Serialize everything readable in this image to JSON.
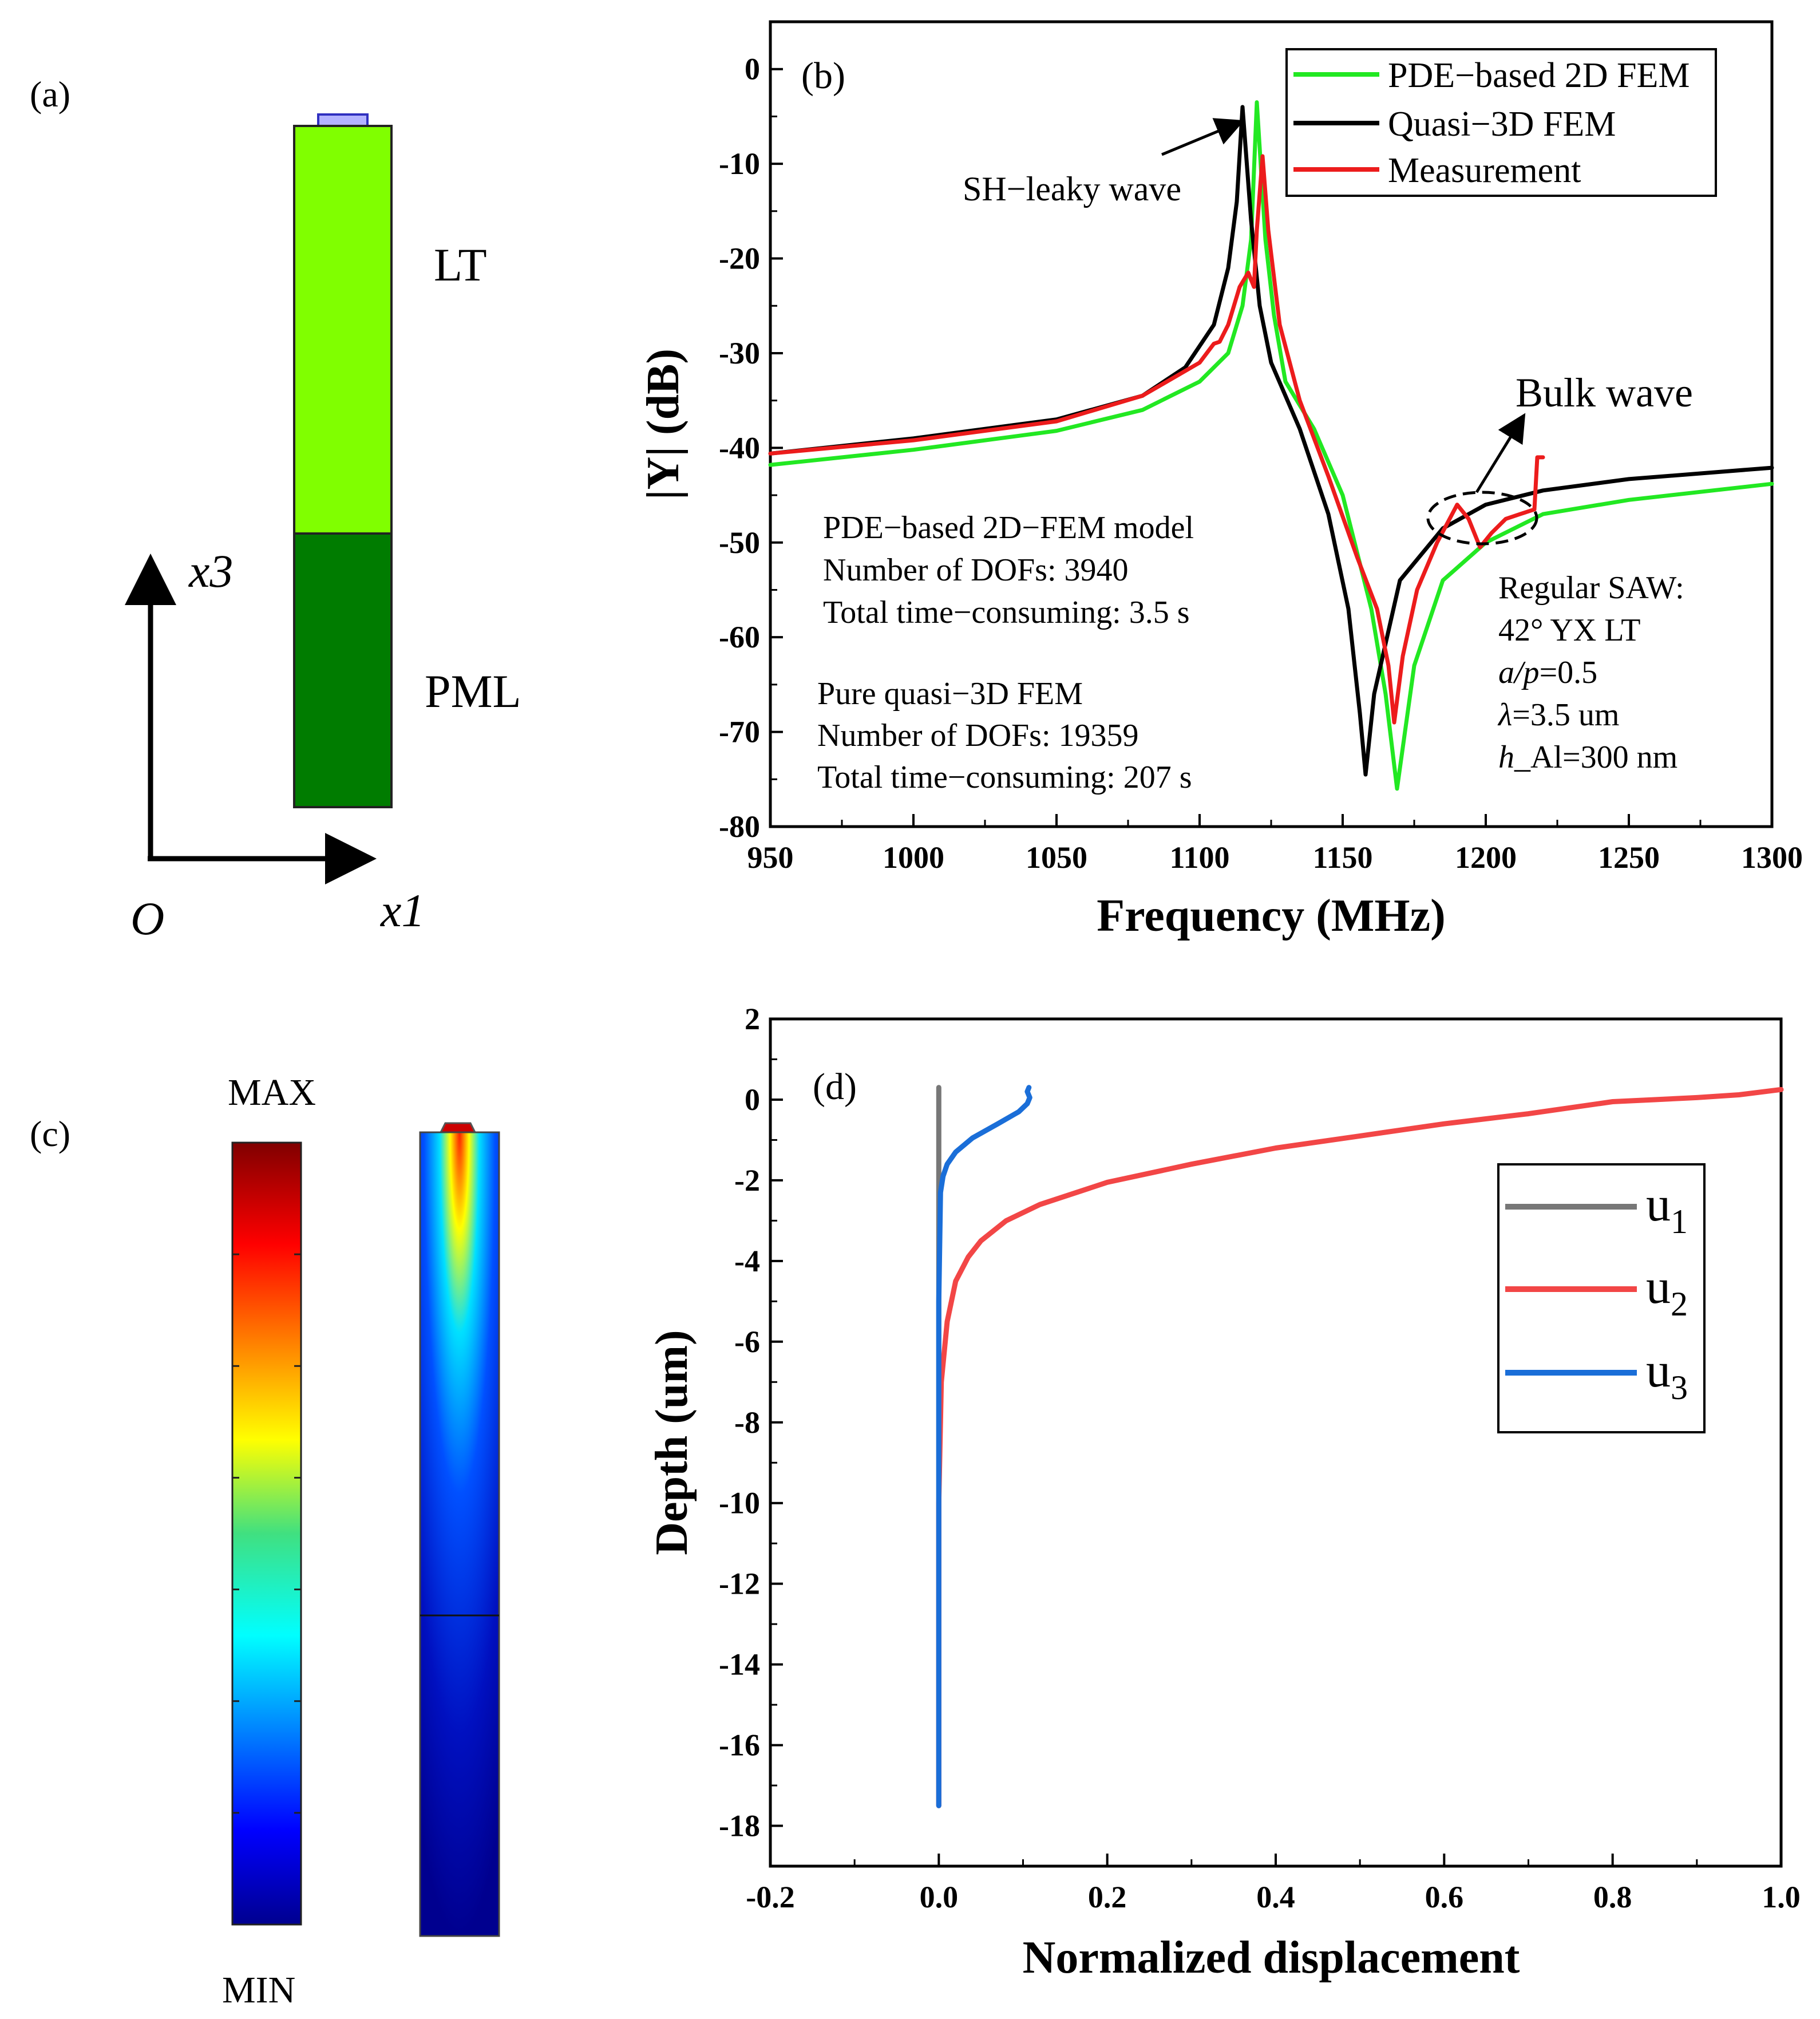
{
  "panel_a": {
    "label": "(a)",
    "lt_label": "LT",
    "pml_label": "PML",
    "x3_label": "x3",
    "x1_label": "x1",
    "origin_label": "O",
    "colors": {
      "lt": "#80ff00",
      "pml": "#007c00",
      "electrode": "#b3b3ff"
    }
  },
  "panel_c": {
    "label": "(c)",
    "max_label": "MAX",
    "min_label": "MIN"
  },
  "chart_data": [
    {
      "type": "line",
      "panel_label": "(b)",
      "xlabel": "Frequency (MHz)",
      "ylabel": "|Y| (dB)",
      "xlim": [
        950,
        1300
      ],
      "ylim": [
        -80,
        5
      ],
      "xticks": [
        950,
        1000,
        1050,
        1100,
        1150,
        1200,
        1250,
        1300
      ],
      "yticks": [
        0,
        -10,
        -20,
        -30,
        -40,
        -50,
        -60,
        -70,
        -80
      ],
      "legend_position": "top-right",
      "series": [
        {
          "name": "PDE−based 2D FEM",
          "color": "#22e822",
          "x": [
            950,
            1000,
            1050,
            1080,
            1100,
            1110,
            1115,
            1118,
            1120,
            1123,
            1126,
            1130,
            1140,
            1150,
            1160,
            1165,
            1169,
            1175,
            1185,
            1200,
            1220,
            1250,
            1300
          ],
          "y": [
            -41.8,
            -40.2,
            -38.2,
            -36,
            -33,
            -30,
            -25,
            -18,
            -3.5,
            -18,
            -26,
            -33,
            -38,
            -45,
            -57,
            -66,
            -76,
            -63,
            -54,
            -50,
            -47,
            -45.5,
            -43.8
          ]
        },
        {
          "name": "Quasi−3D FEM",
          "color": "#000000",
          "x": [
            950,
            1000,
            1050,
            1080,
            1095,
            1105,
            1110,
            1113,
            1115,
            1118,
            1121,
            1125,
            1135,
            1145,
            1152,
            1156,
            1158,
            1161,
            1170,
            1185,
            1200,
            1220,
            1250,
            1300
          ],
          "y": [
            -40.6,
            -39,
            -37,
            -34.5,
            -31.5,
            -27,
            -21,
            -14,
            -4,
            -16,
            -25,
            -31,
            -38,
            -47,
            -57,
            -68,
            -74.5,
            -66,
            -54,
            -48.5,
            -46,
            -44.5,
            -43.3,
            -42.1
          ],
          "annotation": "SH−leaky wave"
        },
        {
          "name": "Measurement",
          "color": "#ec1c1c",
          "x": [
            950,
            1000,
            1050,
            1080,
            1100,
            1105,
            1107,
            1110,
            1114,
            1117,
            1119,
            1120,
            1122,
            1124,
            1128,
            1135,
            1145,
            1155,
            1162,
            1166,
            1168,
            1171,
            1176,
            1183,
            1190,
            1194,
            1198,
            1202,
            1207,
            1212,
            1217,
            1218,
            1219,
            1220
          ],
          "y": [
            -40.6,
            -39.2,
            -37.2,
            -34.5,
            -31,
            -29,
            -28.8,
            -27,
            -23,
            -21.5,
            -23,
            -17,
            -9.2,
            -17,
            -27,
            -35,
            -43,
            -51.5,
            -57,
            -63,
            -69,
            -62,
            -55,
            -50,
            -46,
            -47.5,
            -50.5,
            -49,
            -47.5,
            -47,
            -46.5,
            -41,
            -41,
            -41
          ]
        }
      ],
      "annotations": {
        "sh_leaky": "SH−leaky wave",
        "bulk": "Bulk wave",
        "model1": [
          "PDE−based 2D−FEM model",
          "Number of DOFs: 3940",
          "Total time−consuming: 3.5 s"
        ],
        "model2": [
          "Pure quasi−3D FEM",
          "Number of DOFs: 19359",
          "Total time−consuming: 207 s"
        ],
        "saw": {
          "title": "Regular SAW:",
          "cut": "42° YX LT",
          "ap_var": "a/p",
          "ap_val": "=0.5",
          "lambda_var": "λ",
          "lambda_val": "=3.5 um",
          "h_var": "h",
          "h_val": "_Al=300 nm"
        }
      }
    },
    {
      "type": "line",
      "panel_label": "(d)",
      "xlabel": "Normalized displacement",
      "ylabel": "Depth (um)",
      "xlim": [
        -0.2,
        1.0
      ],
      "ylim": [
        -19,
        2
      ],
      "xticks": [
        -0.2,
        0.0,
        0.2,
        0.4,
        0.6,
        0.8,
        1.0
      ],
      "yticks": [
        2,
        0,
        -2,
        -4,
        -6,
        -8,
        -10,
        -12,
        -14,
        -16,
        -18
      ],
      "legend_position": "right",
      "series": [
        {
          "name": "u1",
          "sub": "1",
          "color": "#777777",
          "x": [
            0.0,
            0.0,
            0.0
          ],
          "y": [
            0.3,
            -2,
            -17.5
          ]
        },
        {
          "name": "u2",
          "sub": "2",
          "color": "#f24646",
          "x": [
            0.0,
            0.0,
            0.003,
            0.01,
            0.02,
            0.035,
            0.05,
            0.08,
            0.12,
            0.2,
            0.3,
            0.4,
            0.5,
            0.6,
            0.7,
            0.8,
            0.85,
            0.9,
            0.95,
            1.0
          ],
          "y": [
            -17.5,
            -10,
            -7,
            -5.5,
            -4.5,
            -3.9,
            -3.5,
            -3.0,
            -2.6,
            -2.05,
            -1.6,
            -1.2,
            -0.9,
            -0.6,
            -0.35,
            -0.05,
            0.0,
            0.05,
            0.12,
            0.25
          ]
        },
        {
          "name": "u3",
          "sub": "3",
          "color": "#1a6ed8",
          "x": [
            0.0,
            0.0,
            0.002,
            0.005,
            0.01,
            0.02,
            0.04,
            0.07,
            0.095,
            0.105,
            0.108,
            0.105,
            0.107
          ],
          "y": [
            -17.5,
            -5,
            -2.3,
            -1.9,
            -1.6,
            -1.3,
            -0.95,
            -0.6,
            -0.3,
            -0.1,
            0.05,
            0.2,
            0.3
          ]
        }
      ]
    }
  ]
}
